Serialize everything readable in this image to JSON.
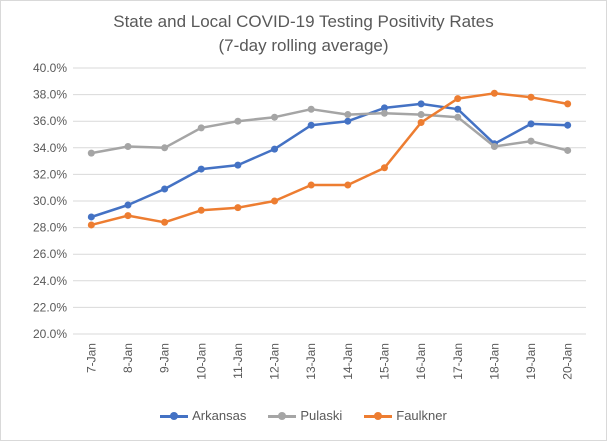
{
  "chart_data": {
    "type": "line",
    "title": "State and Local COVID-19 Testing Positivity Rates",
    "subtitle": "(7-day rolling average)",
    "xlabel": "",
    "ylabel": "",
    "categories": [
      "7-Jan",
      "8-Jan",
      "9-Jan",
      "10-Jan",
      "11-Jan",
      "12-Jan",
      "13-Jan",
      "14-Jan",
      "15-Jan",
      "16-Jan",
      "17-Jan",
      "18-Jan",
      "19-Jan",
      "20-Jan"
    ],
    "ylim": [
      20.0,
      40.0
    ],
    "yticks": [
      "20.0%",
      "22.0%",
      "24.0%",
      "26.0%",
      "28.0%",
      "30.0%",
      "32.0%",
      "34.0%",
      "36.0%",
      "38.0%",
      "40.0%"
    ],
    "grid": true,
    "legend_position": "bottom",
    "series": [
      {
        "name": "Arkansas",
        "color": "#4472c4",
        "values": [
          28.8,
          29.7,
          30.9,
          32.4,
          32.7,
          33.9,
          35.7,
          36.0,
          37.0,
          37.3,
          36.9,
          34.3,
          35.8,
          35.7
        ]
      },
      {
        "name": "Pulaski",
        "color": "#a5a5a5",
        "values": [
          33.6,
          34.1,
          34.0,
          35.5,
          36.0,
          36.3,
          36.9,
          36.5,
          36.6,
          36.5,
          36.3,
          34.1,
          34.5,
          33.8
        ]
      },
      {
        "name": "Faulkner",
        "color": "#ed7d31",
        "values": [
          28.2,
          28.9,
          28.4,
          29.3,
          29.5,
          30.0,
          31.2,
          31.2,
          32.5,
          35.9,
          37.7,
          38.1,
          37.8,
          37.3
        ]
      }
    ]
  }
}
